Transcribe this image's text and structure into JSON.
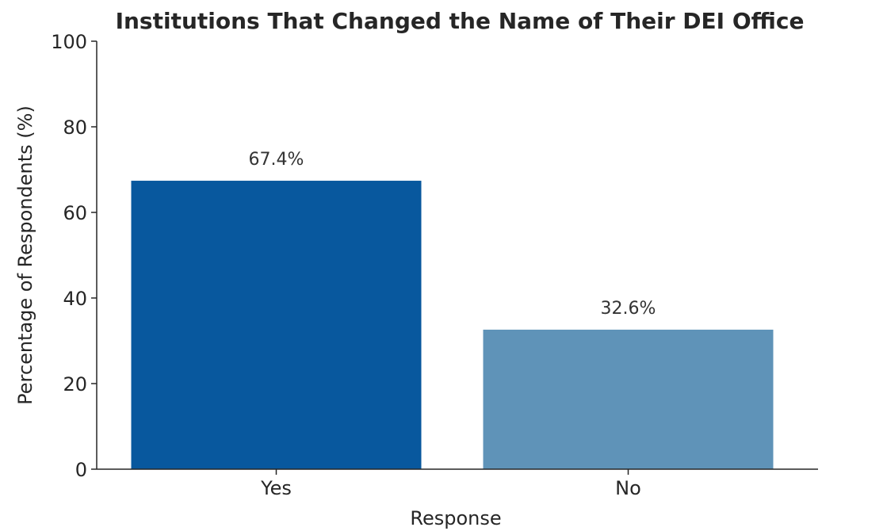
{
  "chart_data": {
    "type": "bar",
    "title": "Institutions That Changed the Name of Their DEI Office",
    "xlabel": "Response",
    "ylabel": "Percentage of Respondents (%)",
    "categories": [
      "Yes",
      "No"
    ],
    "values": [
      67.4,
      32.6
    ],
    "value_labels": [
      "67.4%",
      "32.6%"
    ],
    "ylim": [
      0,
      100
    ],
    "yticks": [
      0,
      20,
      40,
      60,
      80,
      100
    ],
    "bar_colors": [
      "#08589e",
      "#5f93b8"
    ],
    "grid": false,
    "legend": false
  }
}
